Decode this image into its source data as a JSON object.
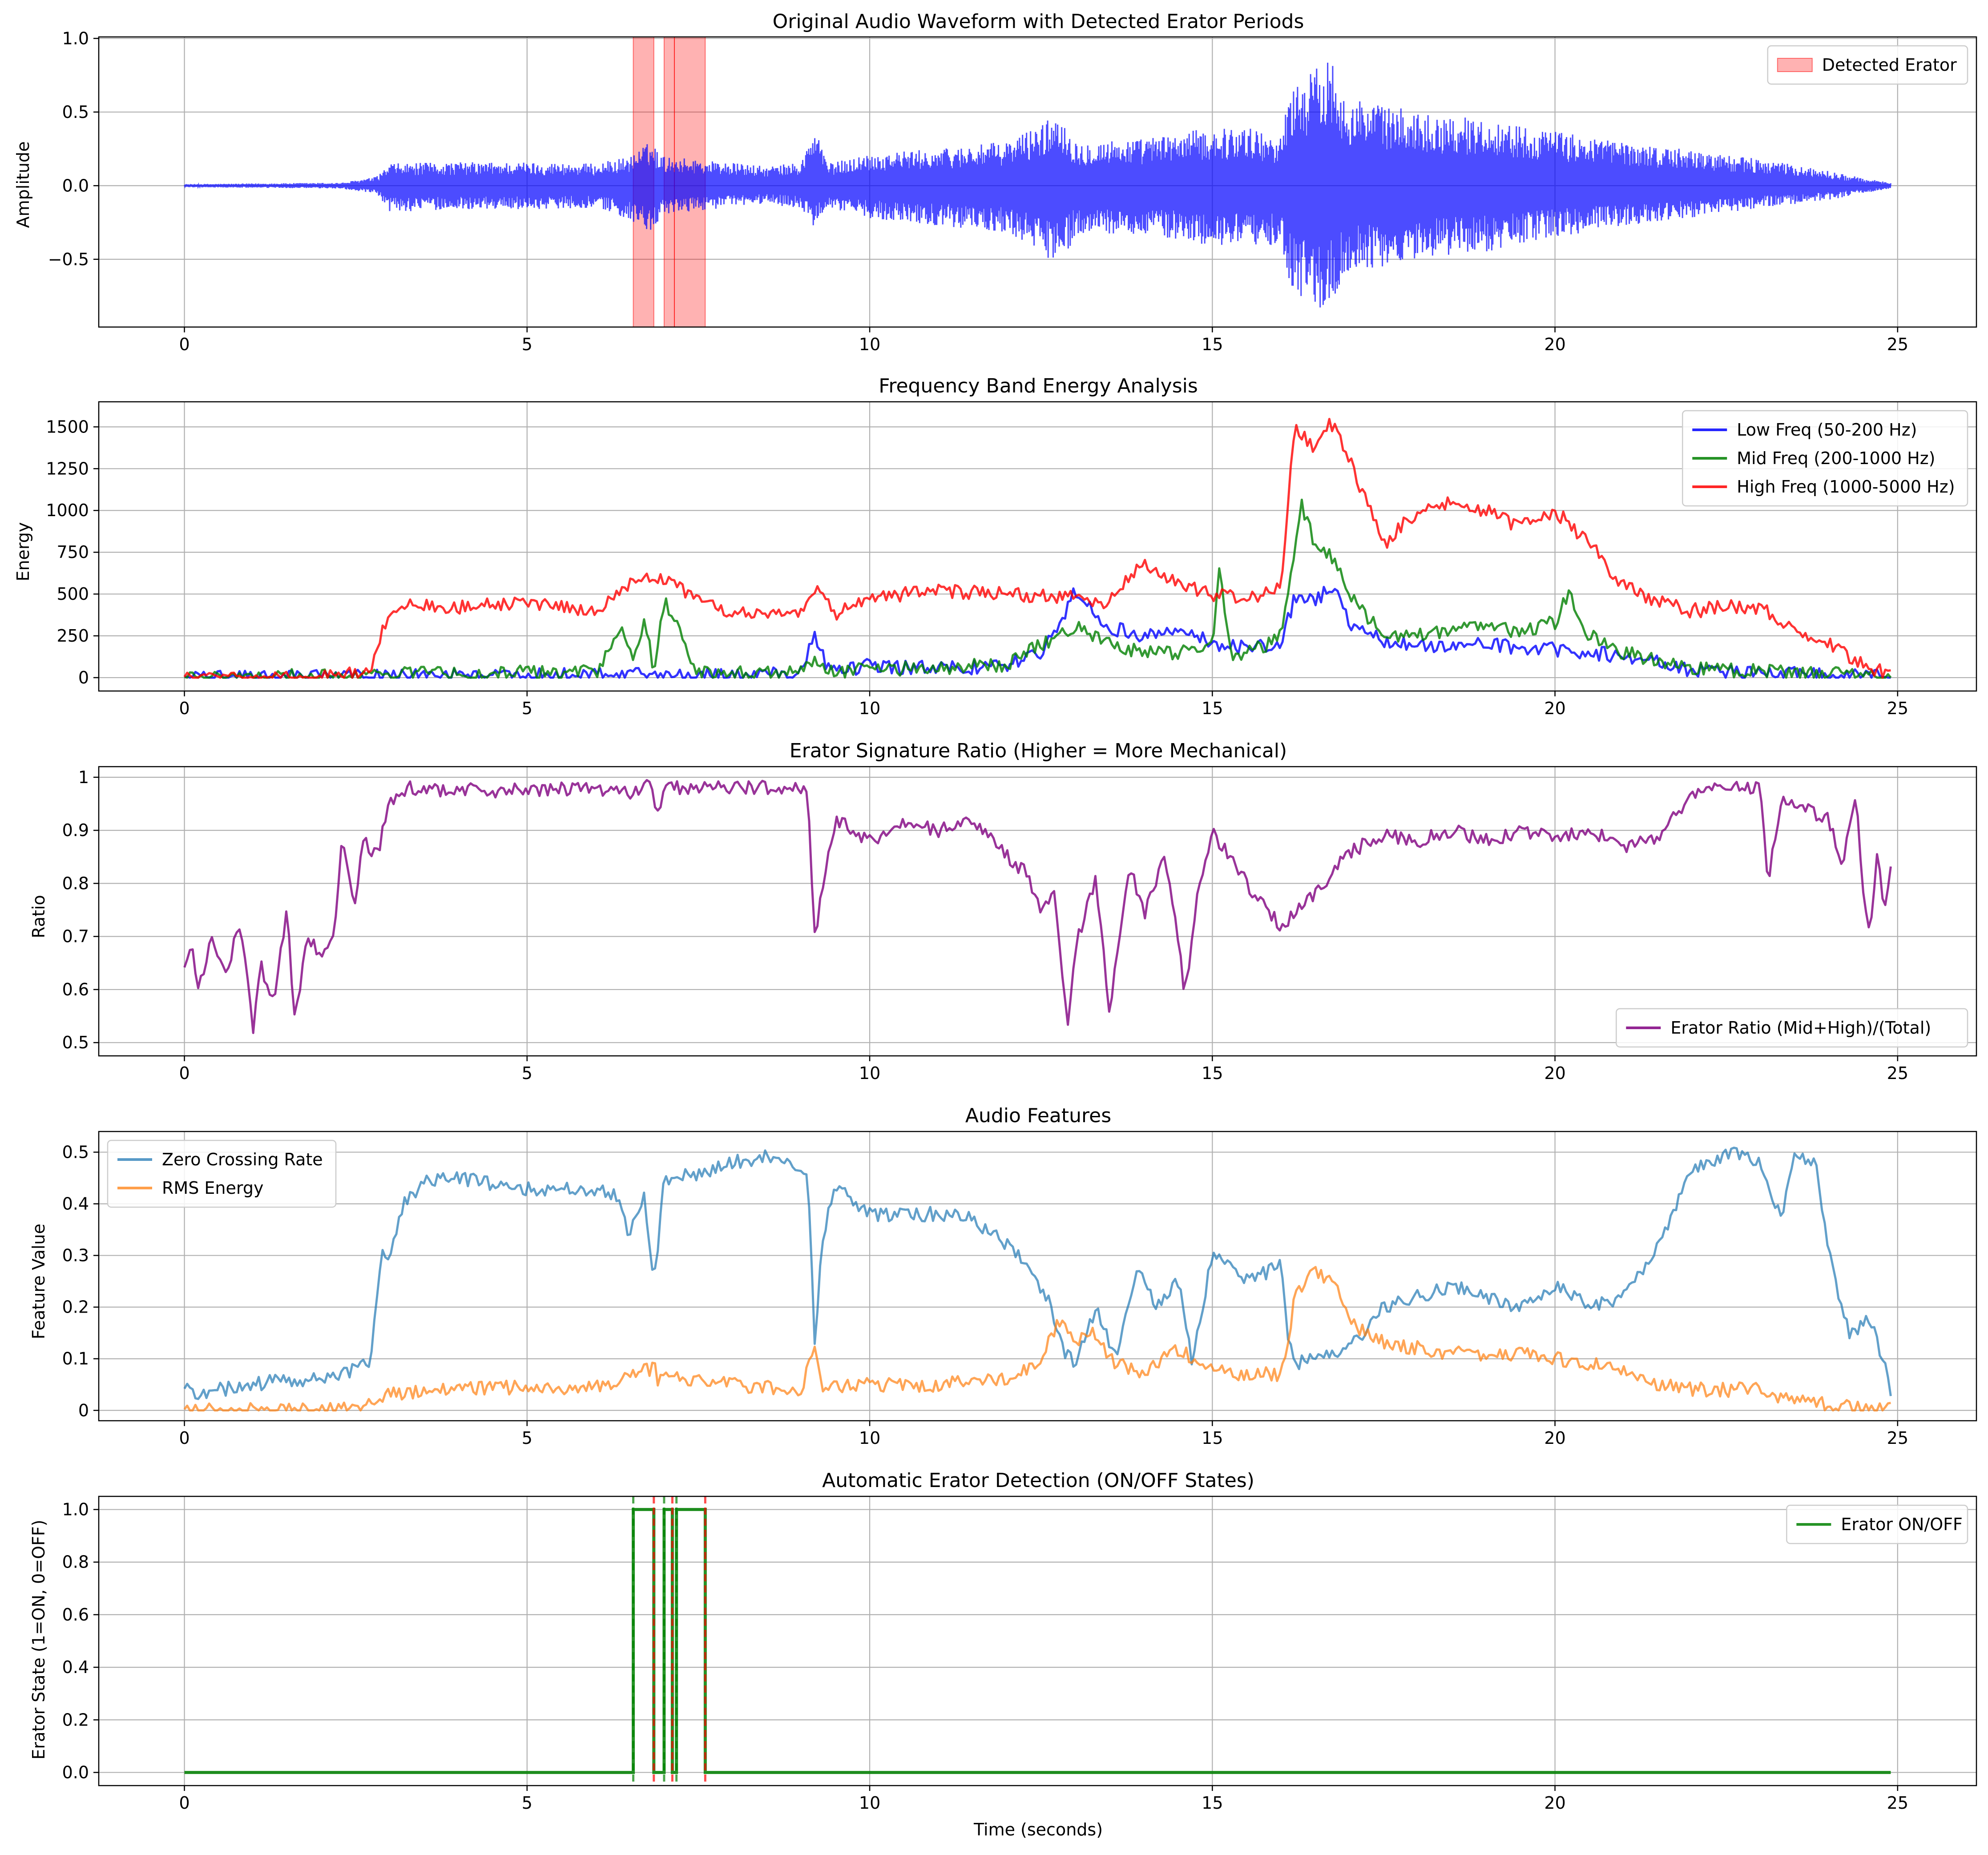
{
  "chart_data": [
    {
      "type": "line",
      "title": "Original Audio Waveform with Detected Erator Periods",
      "xlabel": "",
      "ylabel": "Amplitude",
      "xlim": [
        -1.25,
        26.15
      ],
      "ylim": [
        -0.96,
        1.01
      ],
      "xticks": [
        0,
        5,
        10,
        15,
        20,
        25
      ],
      "yticks": [
        -0.5,
        0.0,
        0.5,
        1.0
      ],
      "ytick_labels": [
        "−0.5",
        "0.0",
        "0.5",
        "1.0"
      ],
      "grid": true,
      "legend": "top-right",
      "series": [
        {
          "name": "",
          "color": "#0000ff",
          "kind": "waveform-envelope",
          "x": [
            0,
            2.3,
            2.8,
            3.0,
            4.0,
            5.0,
            6.0,
            6.5,
            6.8,
            7.0,
            7.5,
            8.5,
            9.0,
            9.2,
            9.4,
            10.0,
            11.0,
            12.0,
            12.8,
            13.0,
            14.0,
            14.8,
            15.5,
            16.0,
            16.15,
            16.4,
            16.7,
            17.0,
            18.0,
            19.0,
            20.0,
            21.0,
            22.0,
            23.0,
            24.0,
            24.5,
            24.9
          ],
          "upper": [
            0.01,
            0.02,
            0.06,
            0.15,
            0.16,
            0.16,
            0.15,
            0.2,
            0.3,
            0.2,
            0.18,
            0.13,
            0.16,
            0.4,
            0.15,
            0.22,
            0.25,
            0.3,
            0.5,
            0.3,
            0.32,
            0.38,
            0.4,
            0.33,
            0.7,
            0.75,
            0.9,
            0.6,
            0.5,
            0.45,
            0.37,
            0.3,
            0.24,
            0.18,
            0.1,
            0.05,
            0.02
          ],
          "lower": [
            -0.01,
            -0.02,
            -0.06,
            -0.18,
            -0.16,
            -0.16,
            -0.15,
            -0.23,
            -0.35,
            -0.2,
            -0.17,
            -0.12,
            -0.16,
            -0.3,
            -0.15,
            -0.22,
            -0.27,
            -0.32,
            -0.55,
            -0.33,
            -0.33,
            -0.4,
            -0.42,
            -0.4,
            -0.7,
            -0.8,
            -0.85,
            -0.6,
            -0.5,
            -0.45,
            -0.35,
            -0.28,
            -0.22,
            -0.15,
            -0.1,
            -0.05,
            -0.02
          ]
        }
      ],
      "spans": {
        "name": "Detected Erator",
        "color": "#ff0000",
        "intervals": [
          [
            6.55,
            6.85
          ],
          [
            7.0,
            7.15
          ],
          [
            7.15,
            7.6
          ]
        ]
      }
    },
    {
      "type": "line",
      "title": "Frequency Band Energy Analysis",
      "xlabel": "",
      "ylabel": "Energy",
      "xlim": [
        -1.25,
        26.15
      ],
      "ylim": [
        -80,
        1650
      ],
      "xticks": [
        0,
        5,
        10,
        15,
        20,
        25
      ],
      "yticks": [
        0,
        250,
        500,
        750,
        1000,
        1250,
        1500
      ],
      "grid": true,
      "legend": "top-right",
      "series": [
        {
          "name": "Low Freq (50-200 Hz)",
          "color": "#0000ff",
          "x": [
            0,
            2.5,
            3.0,
            4.0,
            5.0,
            6.0,
            6.5,
            7.0,
            8.0,
            9.0,
            9.2,
            9.4,
            10.0,
            10.5,
            11.0,
            11.5,
            12.0,
            12.5,
            12.8,
            13.0,
            13.5,
            14.0,
            14.5,
            15.0,
            15.5,
            16.0,
            16.2,
            16.5,
            16.8,
            17.0,
            17.5,
            18.0,
            18.5,
            19.0,
            19.5,
            20.0,
            20.5,
            21.0,
            21.5,
            22.0,
            23.0,
            23.5,
            24.0,
            24.9
          ],
          "y": [
            0,
            5,
            10,
            12,
            15,
            15,
            20,
            18,
            15,
            20,
            270,
            40,
            70,
            60,
            55,
            60,
            80,
            150,
            350,
            520,
            300,
            250,
            300,
            200,
            180,
            200,
            480,
            460,
            560,
            300,
            220,
            200,
            180,
            200,
            180,
            170,
            150,
            130,
            100,
            40,
            30,
            20,
            10,
            5
          ]
        },
        {
          "name": "Mid Freq (200-1000 Hz)",
          "color": "#008000",
          "x": [
            0,
            2.5,
            3.0,
            4.0,
            5.0,
            6.0,
            6.4,
            6.55,
            6.7,
            6.85,
            7.0,
            7.5,
            8.0,
            9.0,
            9.2,
            9.4,
            10.0,
            11.0,
            12.0,
            12.5,
            13.0,
            13.5,
            14.0,
            14.5,
            15.0,
            15.1,
            15.3,
            15.8,
            16.0,
            16.3,
            16.5,
            16.8,
            17.0,
            17.5,
            18.0,
            18.5,
            19.0,
            19.5,
            20.0,
            20.2,
            20.5,
            21.0,
            21.5,
            22.0,
            23.0,
            24.0,
            24.9
          ],
          "y": [
            0,
            15,
            20,
            25,
            30,
            30,
            290,
            80,
            350,
            60,
            460,
            30,
            30,
            30,
            100,
            30,
            50,
            60,
            80,
            200,
            300,
            200,
            150,
            150,
            180,
            640,
            120,
            200,
            260,
            1030,
            800,
            700,
            500,
            250,
            250,
            290,
            300,
            280,
            330,
            510,
            250,
            150,
            100,
            50,
            40,
            20,
            10
          ]
        },
        {
          "name": "High Freq (1000-5000 Hz)",
          "color": "#ff0000",
          "x": [
            0,
            2.3,
            2.7,
            3.0,
            3.3,
            4.0,
            5.0,
            6.0,
            6.5,
            7.0,
            7.5,
            8.0,
            9.0,
            9.2,
            9.5,
            10.0,
            11.0,
            12.0,
            13.0,
            13.5,
            14.0,
            14.5,
            15.0,
            15.5,
            15.8,
            16.0,
            16.2,
            16.5,
            16.7,
            17.0,
            17.2,
            17.5,
            18.0,
            18.5,
            19.0,
            19.5,
            20.0,
            20.5,
            21.0,
            21.5,
            22.0,
            22.5,
            23.0,
            23.5,
            24.0,
            24.5,
            24.9
          ],
          "y": [
            0,
            5,
            50,
            400,
            440,
            420,
            450,
            400,
            560,
            600,
            450,
            380,
            380,
            550,
            380,
            480,
            520,
            500,
            480,
            450,
            700,
            550,
            500,
            480,
            500,
            550,
            1500,
            1350,
            1550,
            1300,
            1100,
            800,
            1000,
            1050,
            1000,
            900,
            1000,
            800,
            550,
            450,
            400,
            420,
            420,
            300,
            200,
            80,
            10
          ]
        }
      ]
    },
    {
      "type": "line",
      "title": "Erator Signature Ratio (Higher = More Mechanical)",
      "xlabel": "",
      "ylabel": "Ratio",
      "xlim": [
        -1.25,
        26.15
      ],
      "ylim": [
        0.475,
        1.02
      ],
      "xticks": [
        0,
        5,
        10,
        15,
        20,
        25
      ],
      "yticks": [
        0.5,
        0.6,
        0.7,
        0.8,
        0.9,
        1.0
      ],
      "grid": true,
      "legend": "bottom-right",
      "series": [
        {
          "name": "Erator Ratio (Mid+High)/(Total)",
          "color": "#800080",
          "x": [
            0,
            0.1,
            0.2,
            0.4,
            0.6,
            0.8,
            0.95,
            1.0,
            1.1,
            1.3,
            1.5,
            1.6,
            1.8,
            2.0,
            2.2,
            2.3,
            2.4,
            2.5,
            2.6,
            2.8,
            3.0,
            3.3,
            4.0,
            5.0,
            6.0,
            6.5,
            6.8,
            6.9,
            7.0,
            8.0,
            9.0,
            9.1,
            9.2,
            9.3,
            9.5,
            10.0,
            10.5,
            11.0,
            11.5,
            12.0,
            12.3,
            12.5,
            12.7,
            12.8,
            12.9,
            13.0,
            13.3,
            13.5,
            13.8,
            14.0,
            14.3,
            14.5,
            14.6,
            14.8,
            15.0,
            15.5,
            16.0,
            16.5,
            17.0,
            17.5,
            18.0,
            18.5,
            19.0,
            19.5,
            20.0,
            20.5,
            21.0,
            21.5,
            22.0,
            22.5,
            23.0,
            23.1,
            23.3,
            23.5,
            24.0,
            24.2,
            24.4,
            24.5,
            24.6,
            24.7,
            24.8,
            24.9
          ],
          "y": [
            0.64,
            0.69,
            0.59,
            0.7,
            0.63,
            0.72,
            0.6,
            0.5,
            0.65,
            0.58,
            0.75,
            0.54,
            0.7,
            0.66,
            0.72,
            0.9,
            0.8,
            0.75,
            0.88,
            0.85,
            0.95,
            0.98,
            0.975,
            0.975,
            0.98,
            0.97,
            0.99,
            0.93,
            0.98,
            0.98,
            0.98,
            0.96,
            0.7,
            0.78,
            0.92,
            0.88,
            0.91,
            0.9,
            0.92,
            0.85,
            0.82,
            0.74,
            0.79,
            0.63,
            0.53,
            0.68,
            0.81,
            0.56,
            0.83,
            0.74,
            0.85,
            0.7,
            0.59,
            0.8,
            0.9,
            0.8,
            0.72,
            0.78,
            0.86,
            0.89,
            0.88,
            0.9,
            0.88,
            0.9,
            0.89,
            0.9,
            0.87,
            0.88,
            0.97,
            0.98,
            0.98,
            0.8,
            0.96,
            0.95,
            0.92,
            0.84,
            0.96,
            0.78,
            0.7,
            0.86,
            0.75,
            0.84
          ]
        }
      ]
    },
    {
      "type": "line",
      "title": "Audio Features",
      "xlabel": "",
      "ylabel": "Feature Value",
      "xlim": [
        -1.25,
        26.15
      ],
      "ylim": [
        -0.02,
        0.54
      ],
      "xticks": [
        0,
        5,
        10,
        15,
        20,
        25
      ],
      "yticks": [
        0.0,
        0.1,
        0.2,
        0.3,
        0.4,
        0.5
      ],
      "grid": true,
      "legend": "top-left",
      "series": [
        {
          "name": "Zero Crossing Rate",
          "color": "#1f77b4",
          "x": [
            0,
            0.05,
            0.1,
            0.5,
            1.0,
            1.5,
            2.0,
            2.5,
            2.7,
            2.8,
            2.9,
            3.0,
            3.2,
            3.5,
            4.0,
            5.0,
            6.0,
            6.3,
            6.5,
            6.7,
            6.85,
            7.0,
            7.5,
            8.0,
            8.5,
            9.0,
            9.1,
            9.2,
            9.3,
            9.5,
            10.0,
            11.0,
            11.5,
            12.0,
            12.3,
            12.6,
            12.8,
            13.0,
            13.3,
            13.6,
            13.9,
            14.2,
            14.5,
            14.7,
            15.0,
            15.5,
            16.0,
            16.1,
            16.2,
            16.5,
            17.0,
            17.5,
            18.0,
            18.5,
            19.0,
            19.5,
            20.0,
            20.5,
            21.0,
            21.5,
            22.0,
            22.5,
            22.8,
            23.0,
            23.3,
            23.5,
            23.8,
            24.0,
            24.3,
            24.6,
            24.8,
            24.9
          ],
          "y": [
            0.04,
            0.065,
            0.03,
            0.04,
            0.05,
            0.06,
            0.06,
            0.08,
            0.09,
            0.2,
            0.31,
            0.3,
            0.4,
            0.44,
            0.45,
            0.43,
            0.43,
            0.42,
            0.34,
            0.42,
            0.24,
            0.45,
            0.46,
            0.48,
            0.49,
            0.47,
            0.46,
            0.12,
            0.33,
            0.44,
            0.38,
            0.38,
            0.37,
            0.32,
            0.28,
            0.22,
            0.12,
            0.09,
            0.2,
            0.1,
            0.28,
            0.2,
            0.25,
            0.1,
            0.3,
            0.25,
            0.28,
            0.15,
            0.09,
            0.1,
            0.12,
            0.2,
            0.22,
            0.24,
            0.22,
            0.2,
            0.24,
            0.2,
            0.22,
            0.32,
            0.46,
            0.5,
            0.49,
            0.48,
            0.37,
            0.5,
            0.48,
            0.3,
            0.14,
            0.18,
            0.09,
            0.04
          ]
        },
        {
          "name": "RMS Energy",
          "color": "#ff7f0e",
          "x": [
            0,
            2.5,
            2.8,
            3.0,
            3.5,
            4.0,
            5.0,
            6.0,
            6.5,
            6.8,
            6.85,
            6.9,
            7.0,
            8.0,
            9.0,
            9.2,
            9.3,
            9.5,
            10.0,
            11.0,
            12.0,
            12.5,
            12.8,
            13.0,
            13.3,
            13.5,
            14.0,
            14.5,
            15.0,
            15.5,
            16.0,
            16.1,
            16.2,
            16.5,
            16.8,
            17.0,
            17.5,
            18.0,
            18.5,
            19.0,
            19.5,
            20.0,
            20.5,
            21.0,
            21.5,
            22.0,
            22.5,
            23.0,
            23.3,
            23.5,
            24.0,
            24.5,
            24.9
          ],
          "y": [
            0.0,
            0.002,
            0.015,
            0.03,
            0.04,
            0.042,
            0.045,
            0.045,
            0.065,
            0.08,
            0.12,
            0.06,
            0.065,
            0.05,
            0.04,
            0.12,
            0.05,
            0.045,
            0.05,
            0.05,
            0.06,
            0.1,
            0.18,
            0.13,
            0.15,
            0.1,
            0.07,
            0.12,
            0.08,
            0.07,
            0.07,
            0.13,
            0.22,
            0.27,
            0.24,
            0.17,
            0.13,
            0.12,
            0.11,
            0.11,
            0.11,
            0.1,
            0.09,
            0.08,
            0.05,
            0.04,
            0.04,
            0.04,
            0.02,
            0.02,
            0.01,
            0.005,
            0.005
          ]
        }
      ]
    },
    {
      "type": "line",
      "title": "Automatic Erator Detection (ON/OFF States)",
      "xlabel": "Time (seconds)",
      "ylabel": "Erator State (1=ON, 0=OFF)",
      "xlim": [
        -1.25,
        26.15
      ],
      "ylim": [
        -0.05,
        1.05
      ],
      "xticks": [
        0,
        5,
        10,
        15,
        20,
        25
      ],
      "yticks": [
        0.0,
        0.2,
        0.4,
        0.6,
        0.8,
        1.0
      ],
      "ytick_labels": [
        "0.0",
        "0.2",
        "0.4",
        "0.6",
        "0.8",
        "1.0"
      ],
      "grid": true,
      "legend": "top-right",
      "series": [
        {
          "name": "Erator ON/OFF",
          "color": "#008000",
          "step": true,
          "x": [
            0,
            6.55,
            6.55,
            6.85,
            6.85,
            7.0,
            7.0,
            7.12,
            7.12,
            7.18,
            7.18,
            7.6,
            7.6,
            24.9
          ],
          "y": [
            0,
            0,
            1,
            1,
            0,
            0,
            1,
            1,
            0,
            0,
            1,
            1,
            0,
            0
          ]
        }
      ],
      "markers": {
        "on_color": "#008000",
        "off_color": "#ff0000",
        "on_x": [
          6.55,
          7.0,
          7.18
        ],
        "off_x": [
          6.85,
          7.12,
          7.6
        ]
      }
    }
  ]
}
